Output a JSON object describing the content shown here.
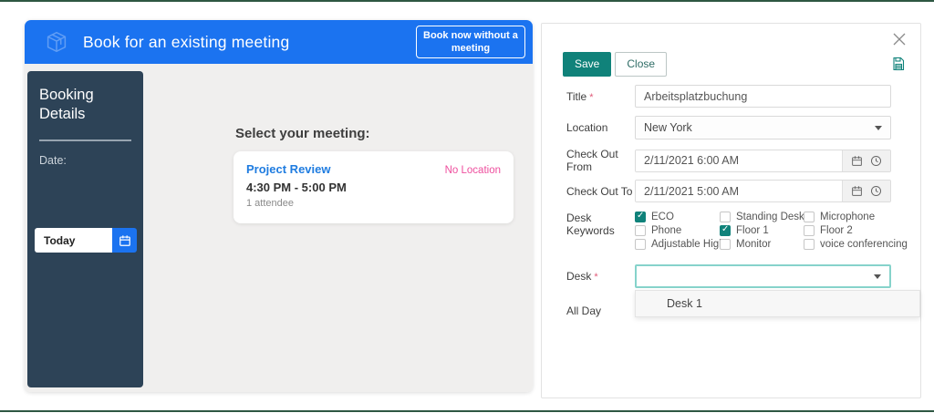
{
  "ui": {
    "required_mark": "*"
  },
  "booking_window": {
    "header": {
      "title": "Book for an existing meeting",
      "book_now_button": "Book now without a meeting"
    },
    "sidebar": {
      "title": "Booking Details",
      "date_label": "Date:",
      "date_value": "Today"
    },
    "meeting_list": {
      "heading": "Select your meeting:",
      "card": {
        "title": "Project Review",
        "location": "No Location",
        "time": "4:30 PM - 5:00 PM",
        "attendees": "1 attendee"
      }
    }
  },
  "booking_form": {
    "toolbar": {
      "save": "Save",
      "close": "Close"
    },
    "title_field": {
      "label": "Title",
      "value": "Arbeitsplatzbuchung"
    },
    "location_field": {
      "label": "Location",
      "value": "New York"
    },
    "check_out_from": {
      "label": "Check Out From",
      "value": "2/11/2021 6:00 AM"
    },
    "check_out_to": {
      "label": "Check Out To",
      "value": "2/11/2021 5:00 AM"
    },
    "desk_keywords": {
      "label": "Desk Keywords",
      "options": [
        {
          "label": "ECO",
          "checked": true
        },
        {
          "label": "Standing Desk",
          "checked": false
        },
        {
          "label": "Microphone",
          "checked": false
        },
        {
          "label": "Phone",
          "checked": false
        },
        {
          "label": "Floor 1",
          "checked": true
        },
        {
          "label": "Floor 2",
          "checked": false
        },
        {
          "label": "Adjustable Hight",
          "checked": false
        },
        {
          "label": "Monitor",
          "checked": false
        },
        {
          "label": "voice conferencing",
          "checked": false
        }
      ]
    },
    "desk_field": {
      "label": "Desk",
      "value": "",
      "options": [
        "Desk 1"
      ]
    },
    "all_day_field": {
      "label": "All Day"
    }
  },
  "colors": {
    "accent_blue": "#1b73f0",
    "sidebar_navy": "#2d4357",
    "teal": "#10827a",
    "pink": "#ee4f9e",
    "link_blue": "#1f7ce0",
    "frame_green": "#2e5742"
  }
}
